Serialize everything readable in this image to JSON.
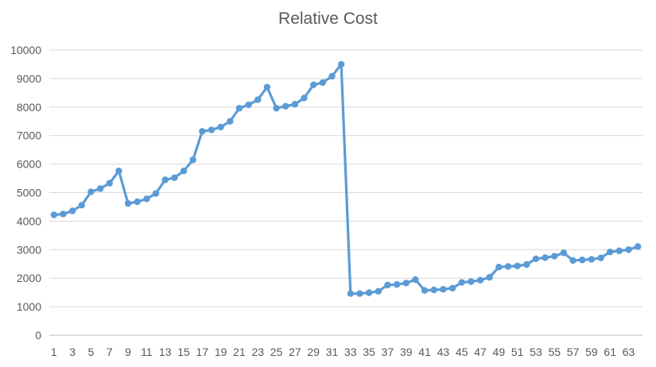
{
  "chart_data": {
    "type": "line",
    "title": "Relative Cost",
    "xlabel": "",
    "ylabel": "",
    "ylim": [
      0,
      10000
    ],
    "yticks": [
      0,
      1000,
      2000,
      3000,
      4000,
      5000,
      6000,
      7000,
      8000,
      9000,
      10000
    ],
    "grid": "horizontal",
    "legend": "none",
    "color": "#5B9BD5",
    "xtick_labels": [
      1,
      3,
      5,
      7,
      9,
      11,
      13,
      15,
      17,
      19,
      21,
      23,
      25,
      27,
      29,
      31,
      33,
      35,
      37,
      39,
      41,
      43,
      45,
      47,
      49,
      51,
      53,
      55,
      57,
      59,
      61,
      63
    ],
    "series": [
      {
        "values": [
          4220,
          4250,
          4360,
          4560,
          5030,
          5140,
          5330,
          5760,
          4620,
          4680,
          4780,
          4970,
          5450,
          5520,
          5760,
          6150,
          7150,
          7200,
          7300,
          7500,
          7960,
          8080,
          8260,
          8700,
          7960,
          8030,
          8100,
          8320,
          8780,
          8860,
          9080,
          9500,
          1460,
          1460,
          1490,
          1540,
          1760,
          1780,
          1830,
          1950,
          1570,
          1590,
          1610,
          1650,
          1850,
          1880,
          1930,
          2030,
          2390,
          2410,
          2430,
          2480,
          2680,
          2720,
          2770,
          2890,
          2620,
          2640,
          2660,
          2710,
          2920,
          2960,
          3000,
          3110
        ]
      }
    ]
  }
}
